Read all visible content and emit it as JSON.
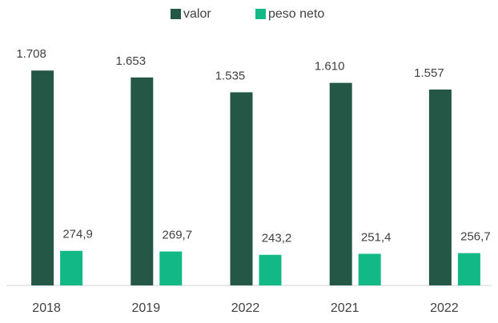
{
  "chart_data": {
    "type": "bar",
    "categories": [
      "2018",
      "2019",
      "2022",
      "2021",
      "2022"
    ],
    "series": [
      {
        "name": "valor",
        "color": "#245746",
        "values": [
          1708,
          1653,
          1535,
          1610,
          1557
        ],
        "value_labels": [
          "1.708",
          "1.653",
          "1.535",
          "1.610",
          "1.557"
        ]
      },
      {
        "name": "peso neto",
        "color": "#12b886",
        "values": [
          274.9,
          269.7,
          243.2,
          251.4,
          256.7
        ],
        "value_labels": [
          "274,9",
          "269,7",
          "243,2",
          "251,4",
          "256,7"
        ]
      }
    ],
    "ylim": [
      0,
      1900
    ],
    "legend": "top"
  }
}
